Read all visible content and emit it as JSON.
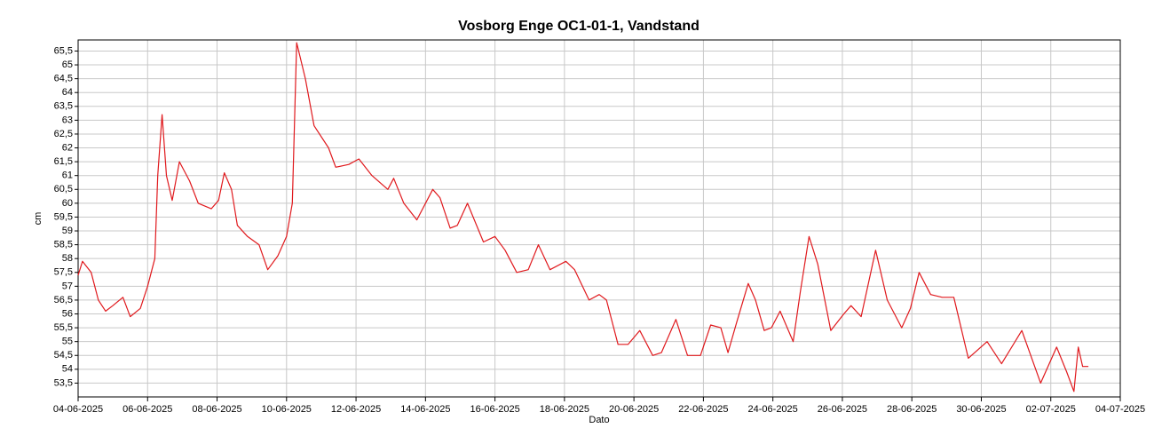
{
  "chart_data": {
    "type": "line",
    "title": "Vosborg Enge OC1-01-1, Vandstand",
    "x_label": "Dato",
    "y_label": "cm",
    "grid": true,
    "xlim": [
      "2025-06-04T00:00",
      "2025-07-04T00:00"
    ],
    "xticks": [
      {
        "value": "2025-06-04T00:00",
        "label": "04-06-2025"
      },
      {
        "value": "2025-06-06T00:00",
        "label": "06-06-2025"
      },
      {
        "value": "2025-06-08T00:00",
        "label": "08-06-2025"
      },
      {
        "value": "2025-06-10T00:00",
        "label": "10-06-2025"
      },
      {
        "value": "2025-06-12T00:00",
        "label": "12-06-2025"
      },
      {
        "value": "2025-06-14T00:00",
        "label": "14-06-2025"
      },
      {
        "value": "2025-06-16T00:00",
        "label": "16-06-2025"
      },
      {
        "value": "2025-06-18T00:00",
        "label": "18-06-2025"
      },
      {
        "value": "2025-06-20T00:00",
        "label": "20-06-2025"
      },
      {
        "value": "2025-06-22T00:00",
        "label": "22-06-2025"
      },
      {
        "value": "2025-06-24T00:00",
        "label": "24-06-2025"
      },
      {
        "value": "2025-06-26T00:00",
        "label": "26-06-2025"
      },
      {
        "value": "2025-06-28T00:00",
        "label": "28-06-2025"
      },
      {
        "value": "2025-06-30T00:00",
        "label": "30-06-2025"
      },
      {
        "value": "2025-07-02T00:00",
        "label": "02-07-2025"
      },
      {
        "value": "2025-07-04T00:00",
        "label": "04-07-2025"
      }
    ],
    "ylim": [
      53,
      65.9
    ],
    "yticks": [
      {
        "value": 53.5,
        "label": "53,5"
      },
      54,
      {
        "value": 54.5,
        "label": "54,5"
      },
      55,
      {
        "value": 55.5,
        "label": "55,5"
      },
      56,
      {
        "value": 56.5,
        "label": "56,5"
      },
      57,
      {
        "value": 57.5,
        "label": "57,5"
      },
      58,
      {
        "value": 58.5,
        "label": "58,5"
      },
      59,
      {
        "value": 59.5,
        "label": "59,5"
      },
      60,
      {
        "value": 60.5,
        "label": "60,5"
      },
      61,
      {
        "value": 61.5,
        "label": "61,5"
      },
      62,
      {
        "value": 62.5,
        "label": "62,5"
      },
      63,
      {
        "value": 63.5,
        "label": "63,5"
      },
      64,
      {
        "value": 64.5,
        "label": "64,5"
      },
      65,
      {
        "value": 65.5,
        "label": "65,5"
      }
    ],
    "x": [
      "2025-06-04T00:00",
      "2025-06-04T03:00",
      "2025-06-04T09:00",
      "2025-06-04T14:00",
      "2025-06-04T19:00",
      "2025-06-05T00:00",
      "2025-06-05T07:00",
      "2025-06-05T12:00",
      "2025-06-05T19:00",
      "2025-06-06T00:00",
      "2025-06-06T05:00",
      "2025-06-06T07:00",
      "2025-06-06T10:00",
      "2025-06-06T13:00",
      "2025-06-06T17:00",
      "2025-06-06T22:00",
      "2025-06-07T05:00",
      "2025-06-07T11:00",
      "2025-06-07T20:00",
      "2025-06-08T01:00",
      "2025-06-08T05:00",
      "2025-06-08T10:00",
      "2025-06-08T14:00",
      "2025-06-08T21:00",
      "2025-06-09T05:00",
      "2025-06-09T11:00",
      "2025-06-09T18:00",
      "2025-06-10T00:00",
      "2025-06-10T04:00",
      "2025-06-10T07:00",
      "2025-06-10T13:00",
      "2025-06-10T19:00",
      "2025-06-11T05:00",
      "2025-06-11T10:00",
      "2025-06-11T19:00",
      "2025-06-12T02:00",
      "2025-06-12T11:00",
      "2025-06-12T22:00",
      "2025-06-13T02:00",
      "2025-06-13T09:00",
      "2025-06-13T18:00",
      "2025-06-14T05:00",
      "2025-06-14T10:00",
      "2025-06-14T17:00",
      "2025-06-14T22:00",
      "2025-06-15T05:00",
      "2025-06-15T16:00",
      "2025-06-16T00:00",
      "2025-06-16T07:00",
      "2025-06-16T15:00",
      "2025-06-16T23:00",
      "2025-06-17T06:00",
      "2025-06-17T14:00",
      "2025-06-18T01:00",
      "2025-06-18T07:00",
      "2025-06-18T17:00",
      "2025-06-19T00:00",
      "2025-06-19T05:00",
      "2025-06-19T13:00",
      "2025-06-19T20:00",
      "2025-06-20T04:00",
      "2025-06-20T13:00",
      "2025-06-20T19:00",
      "2025-06-21T05:00",
      "2025-06-21T13:00",
      "2025-06-21T22:00",
      "2025-06-22T05:00",
      "2025-06-22T12:00",
      "2025-06-22T17:00",
      "2025-06-22T23:00",
      "2025-06-23T07:00",
      "2025-06-23T12:00",
      "2025-06-23T18:00",
      "2025-06-23T23:00",
      "2025-06-24T05:00",
      "2025-06-24T14:00",
      "2025-06-24T19:00",
      "2025-06-25T01:00",
      "2025-06-25T07:00",
      "2025-06-25T16:00",
      "2025-06-26T01:00",
      "2025-06-26T06:00",
      "2025-06-26T13:00",
      "2025-06-26T23:00",
      "2025-06-27T07:00",
      "2025-06-27T17:00",
      "2025-06-27T23:00",
      "2025-06-28T05:00",
      "2025-06-28T13:00",
      "2025-06-28T21:00",
      "2025-06-29T05:00",
      "2025-06-29T15:00",
      "2025-06-30T04:00",
      "2025-06-30T14:00",
      "2025-07-01T04:00",
      "2025-07-01T17:00",
      "2025-07-02T04:00",
      "2025-07-02T11:00",
      "2025-07-02T16:00",
      "2025-07-02T19:00",
      "2025-07-02T22:00",
      "2025-07-03T02:00"
    ],
    "series": [
      {
        "name": "Vandstand",
        "color": "#e0191d",
        "values": [
          57.4,
          57.9,
          57.5,
          56.5,
          56.1,
          56.3,
          56.6,
          55.9,
          56.2,
          57.0,
          58.0,
          61.0,
          63.2,
          61.0,
          60.1,
          61.5,
          60.8,
          60.0,
          59.8,
          60.1,
          61.1,
          60.5,
          59.2,
          58.8,
          58.5,
          57.6,
          58.1,
          58.8,
          60.0,
          65.8,
          64.5,
          62.8,
          62.0,
          61.3,
          61.4,
          61.6,
          61.0,
          60.5,
          60.9,
          60.0,
          59.4,
          60.5,
          60.2,
          59.1,
          59.2,
          60.0,
          58.6,
          58.8,
          58.3,
          57.5,
          57.6,
          58.5,
          57.6,
          57.9,
          57.6,
          56.5,
          56.7,
          56.5,
          54.9,
          54.9,
          55.4,
          54.5,
          54.6,
          55.8,
          54.5,
          54.5,
          55.6,
          55.5,
          54.6,
          55.7,
          57.1,
          56.5,
          55.4,
          55.5,
          56.1,
          55.0,
          56.8,
          58.8,
          57.8,
          55.4,
          56.0,
          56.3,
          55.9,
          58.3,
          56.5,
          55.5,
          56.2,
          57.5,
          56.7,
          56.6,
          56.6,
          54.4,
          55.0,
          54.2,
          55.4,
          53.5,
          54.8,
          53.9,
          53.2,
          54.8,
          54.1,
          54.1
        ]
      }
    ]
  }
}
